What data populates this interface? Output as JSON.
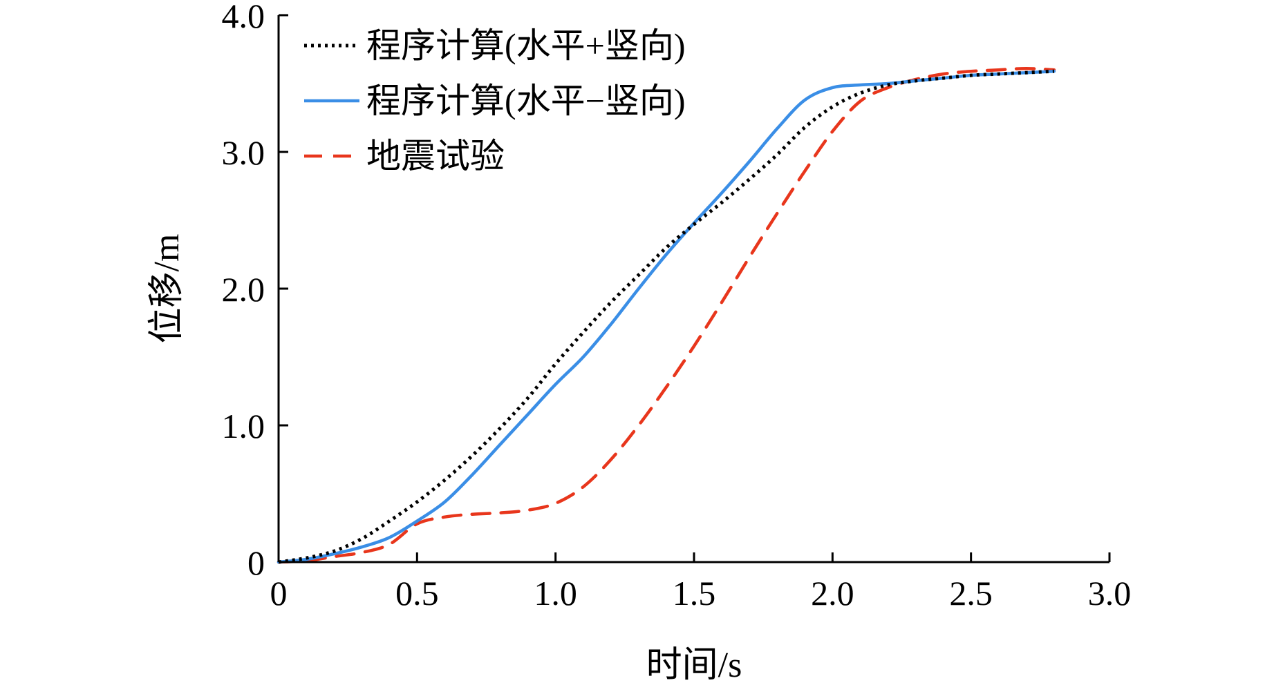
{
  "chart_data": {
    "type": "line",
    "title": "",
    "xlabel": "时间/s",
    "ylabel": "位移/m",
    "xlim": [
      0,
      3.0
    ],
    "ylim": [
      0,
      4.0
    ],
    "xticks": [
      {
        "value": 0,
        "label": "0"
      },
      {
        "value": 0.5,
        "label": "0.5"
      },
      {
        "value": 1.0,
        "label": "1.0"
      },
      {
        "value": 1.5,
        "label": "1.5"
      },
      {
        "value": 2.0,
        "label": "2.0"
      },
      {
        "value": 2.5,
        "label": "2.5"
      },
      {
        "value": 3.0,
        "label": "3.0"
      }
    ],
    "yticks": [
      {
        "value": 0,
        "label": "0"
      },
      {
        "value": 1.0,
        "label": "1.0"
      },
      {
        "value": 2.0,
        "label": "2.0"
      },
      {
        "value": 3.0,
        "label": "3.0"
      },
      {
        "value": 4.0,
        "label": "4.0"
      }
    ],
    "grid": false,
    "legend_position": "top-left",
    "series": [
      {
        "name": "程序计算(水平+竖向)",
        "color": "#000000",
        "style": "dotted",
        "points": [
          [
            0,
            0
          ],
          [
            0.1,
            0.03
          ],
          [
            0.2,
            0.08
          ],
          [
            0.3,
            0.17
          ],
          [
            0.4,
            0.3
          ],
          [
            0.5,
            0.44
          ],
          [
            0.6,
            0.6
          ],
          [
            0.7,
            0.78
          ],
          [
            0.8,
            0.98
          ],
          [
            0.9,
            1.2
          ],
          [
            1.0,
            1.45
          ],
          [
            1.1,
            1.68
          ],
          [
            1.2,
            1.9
          ],
          [
            1.3,
            2.1
          ],
          [
            1.4,
            2.3
          ],
          [
            1.5,
            2.47
          ],
          [
            1.6,
            2.63
          ],
          [
            1.7,
            2.8
          ],
          [
            1.8,
            2.98
          ],
          [
            1.9,
            3.18
          ],
          [
            2.0,
            3.33
          ],
          [
            2.1,
            3.43
          ],
          [
            2.2,
            3.49
          ],
          [
            2.3,
            3.52
          ],
          [
            2.4,
            3.54
          ],
          [
            2.5,
            3.56
          ],
          [
            2.6,
            3.57
          ],
          [
            2.7,
            3.58
          ],
          [
            2.8,
            3.59
          ]
        ]
      },
      {
        "name": "程序计算(水平−竖向)",
        "color": "#3a8ee6",
        "style": "solid",
        "points": [
          [
            0,
            0
          ],
          [
            0.1,
            0.02
          ],
          [
            0.2,
            0.06
          ],
          [
            0.3,
            0.11
          ],
          [
            0.4,
            0.18
          ],
          [
            0.5,
            0.3
          ],
          [
            0.6,
            0.44
          ],
          [
            0.7,
            0.64
          ],
          [
            0.8,
            0.86
          ],
          [
            0.9,
            1.08
          ],
          [
            1.0,
            1.3
          ],
          [
            1.1,
            1.5
          ],
          [
            1.2,
            1.74
          ],
          [
            1.3,
            2.0
          ],
          [
            1.4,
            2.25
          ],
          [
            1.5,
            2.48
          ],
          [
            1.6,
            2.7
          ],
          [
            1.7,
            2.93
          ],
          [
            1.8,
            3.17
          ],
          [
            1.9,
            3.38
          ],
          [
            2.0,
            3.47
          ],
          [
            2.1,
            3.49
          ],
          [
            2.2,
            3.5
          ],
          [
            2.3,
            3.52
          ],
          [
            2.4,
            3.54
          ],
          [
            2.5,
            3.56
          ],
          [
            2.6,
            3.57
          ],
          [
            2.7,
            3.58
          ],
          [
            2.8,
            3.59
          ]
        ]
      },
      {
        "name": "地震试验",
        "color": "#e8361c",
        "style": "dashed",
        "points": [
          [
            0,
            0
          ],
          [
            0.1,
            0.01
          ],
          [
            0.2,
            0.04
          ],
          [
            0.3,
            0.07
          ],
          [
            0.4,
            0.13
          ],
          [
            0.5,
            0.28
          ],
          [
            0.6,
            0.33
          ],
          [
            0.7,
            0.35
          ],
          [
            0.8,
            0.36
          ],
          [
            0.9,
            0.38
          ],
          [
            1.0,
            0.43
          ],
          [
            1.1,
            0.55
          ],
          [
            1.2,
            0.75
          ],
          [
            1.3,
            1.0
          ],
          [
            1.4,
            1.28
          ],
          [
            1.5,
            1.58
          ],
          [
            1.6,
            1.9
          ],
          [
            1.7,
            2.23
          ],
          [
            1.8,
            2.55
          ],
          [
            1.9,
            2.86
          ],
          [
            2.0,
            3.15
          ],
          [
            2.1,
            3.37
          ],
          [
            2.2,
            3.47
          ],
          [
            2.3,
            3.53
          ],
          [
            2.4,
            3.57
          ],
          [
            2.5,
            3.59
          ],
          [
            2.6,
            3.6
          ],
          [
            2.7,
            3.61
          ],
          [
            2.8,
            3.6
          ]
        ]
      }
    ]
  }
}
